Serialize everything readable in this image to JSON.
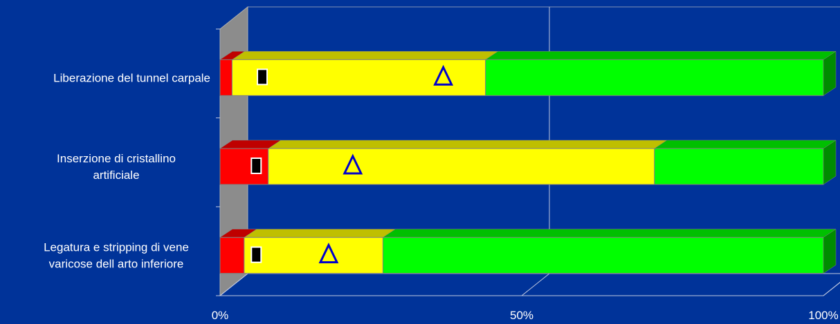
{
  "chart_data": {
    "type": "bar",
    "stacked": "percent",
    "orientation": "horizontal",
    "three_d": true,
    "categories": [
      "Liberazione del tunnel carpale",
      "Inserzione di cristallino artificiale",
      "Legatura e stripping di vene varicose dell arto inferiore"
    ],
    "category_label_lines": [
      [
        "Liberazione del tunnel carpale"
      ],
      [
        "Inserzione di cristallino",
        "artificiale"
      ],
      [
        "Legatura e stripping di vene",
        "varicose dell arto inferiore"
      ]
    ],
    "series": [
      {
        "color": "#ff0000",
        "values": [
          2,
          8,
          4
        ]
      },
      {
        "color": "#ffff00",
        "values": [
          42,
          64,
          23
        ]
      },
      {
        "color": "#00ff00",
        "values": [
          56,
          28,
          73
        ]
      }
    ],
    "markers": [
      {
        "shape": "square",
        "color": "#000000",
        "values": [
          7,
          6,
          6
        ]
      },
      {
        "shape": "triangle",
        "color": "#0000cc",
        "values": [
          37,
          22,
          18
        ]
      }
    ],
    "x_ticks": [
      "0%",
      "50%",
      "100%"
    ],
    "xlim": [
      0,
      100
    ],
    "grid": true,
    "legend": "none",
    "title": "",
    "xlabel": "",
    "ylabel": ""
  }
}
